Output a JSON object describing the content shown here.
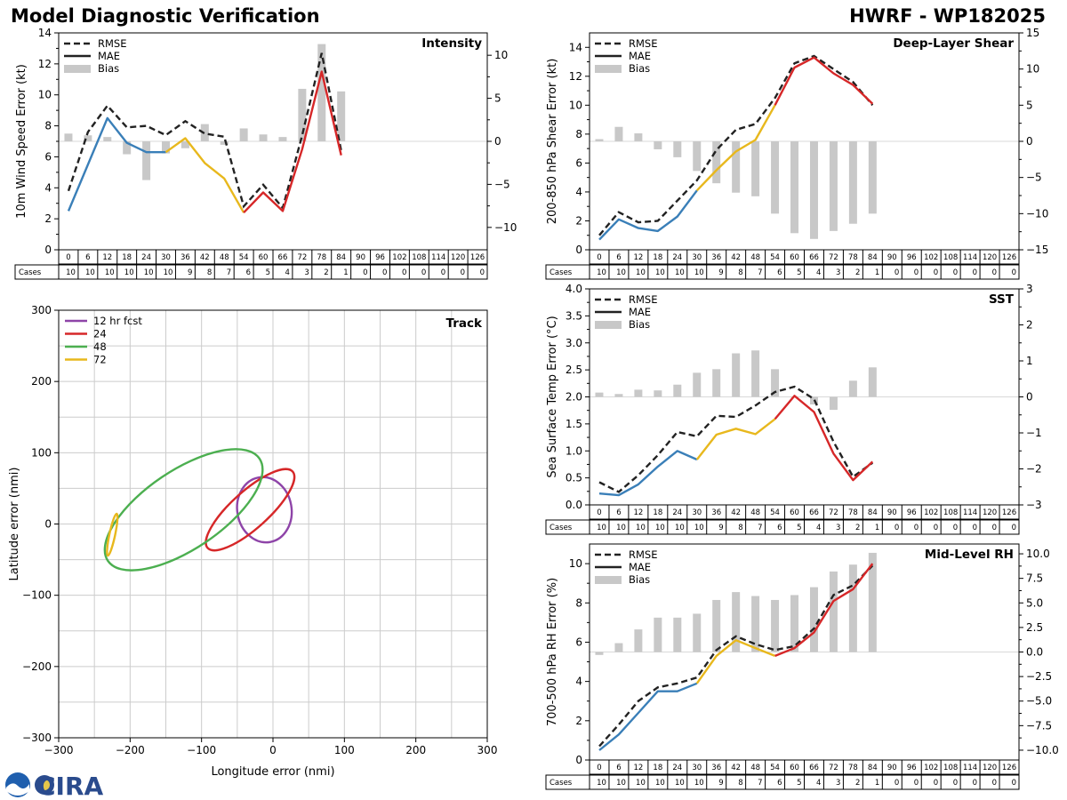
{
  "header": {
    "title_left": "Model Diagnostic Verification",
    "title_right": "HWRF - WP182025"
  },
  "logo": {
    "text": "CIRA"
  },
  "legend_labels": {
    "rmse": "RMSE",
    "mae": "MAE",
    "bias": "Bias"
  },
  "colors": {
    "early": "#3a7fb8",
    "mid": "#e8b81d",
    "late": "#d62728",
    "rmse": "#222222",
    "bias": "#c8c8c8",
    "fc12": "#8e44a8",
    "fc24": "#d62728",
    "fc48": "#4caf50",
    "fc72": "#e8b81d",
    "grid": "#cccccc"
  },
  "lead_hours": [
    0,
    6,
    12,
    18,
    24,
    30,
    36,
    42,
    48,
    54,
    60,
    66,
    72,
    78,
    84,
    90,
    96,
    102,
    108,
    114,
    120,
    126
  ],
  "chart_data": [
    {
      "id": "intensity",
      "type": "line",
      "panel_title": "Intensity",
      "ylabel": "10m Wind Speed Error (kt)",
      "ylim": [
        0,
        14
      ],
      "yticks": [
        0,
        2,
        4,
        6,
        8,
        10,
        12,
        14
      ],
      "y2lim": [
        -12.6,
        12.6
      ],
      "y2ticks": [
        -10,
        -5,
        0,
        5,
        10
      ],
      "y2ticklabels": [
        "−10",
        "−5",
        "0",
        "5",
        "10"
      ],
      "x": [
        0,
        6,
        12,
        18,
        24,
        30,
        36,
        42,
        48,
        54,
        60,
        66,
        72,
        78,
        84
      ],
      "rmse": [
        3.8,
        7.6,
        9.3,
        7.9,
        8.0,
        7.4,
        8.3,
        7.5,
        7.3,
        2.8,
        4.2,
        2.7,
        7.4,
        12.7,
        6.4
      ],
      "mae": [
        2.5,
        5.5,
        8.5,
        6.9,
        6.3,
        6.3,
        7.2,
        5.6,
        4.6,
        2.4,
        3.7,
        2.5,
        6.5,
        11.5,
        6.1
      ],
      "bias": [
        0.9,
        0.7,
        0.5,
        -1.5,
        -4.5,
        -1.4,
        -0.8,
        2.0,
        -0.4,
        1.5,
        0.8,
        0.5,
        6.1,
        11.3,
        5.8
      ],
      "cases": [
        10,
        10,
        10,
        10,
        10,
        10,
        9,
        8,
        7,
        6,
        5,
        4,
        3,
        2,
        1,
        0,
        0,
        0,
        0,
        0,
        0,
        0
      ]
    },
    {
      "id": "shear",
      "type": "line",
      "panel_title": "Deep-Layer Shear",
      "ylabel": "200-850 hPa Shear Error (kt)",
      "ylim": [
        0,
        15
      ],
      "yticks": [
        0,
        2,
        4,
        6,
        8,
        10,
        12,
        14
      ],
      "y2lim": [
        -15,
        15
      ],
      "y2ticks": [
        -15,
        -10,
        -5,
        0,
        5,
        10,
        15
      ],
      "y2ticklabels": [
        "−15",
        "−10",
        "−5",
        "0",
        "5",
        "10",
        "15"
      ],
      "x": [
        0,
        6,
        12,
        18,
        24,
        30,
        36,
        42,
        48,
        54,
        60,
        66,
        72,
        78,
        84
      ],
      "rmse": [
        1.0,
        2.6,
        1.9,
        2.0,
        3.4,
        4.8,
        6.9,
        8.3,
        8.7,
        10.5,
        12.9,
        13.4,
        12.5,
        11.6,
        10.0
      ],
      "mae": [
        0.7,
        2.1,
        1.5,
        1.3,
        2.3,
        4.1,
        5.5,
        6.8,
        7.6,
        10.0,
        12.6,
        13.3,
        12.2,
        11.4,
        10.1
      ],
      "bias": [
        0.3,
        2.0,
        1.1,
        -1.1,
        -2.2,
        -4.1,
        -5.8,
        -7.1,
        -7.6,
        -10.0,
        -12.7,
        -13.5,
        -12.4,
        -11.4,
        -10.0
      ],
      "cases": [
        10,
        10,
        10,
        10,
        10,
        10,
        9,
        8,
        7,
        6,
        5,
        4,
        3,
        2,
        1,
        0,
        0,
        0,
        0,
        0,
        0,
        0
      ]
    },
    {
      "id": "sst",
      "type": "line",
      "panel_title": "SST",
      "ylabel": "Sea Surface Temp Error (°C)",
      "ylim": [
        0,
        4
      ],
      "yticks": [
        0,
        0.5,
        1,
        1.5,
        2,
        2.5,
        3,
        3.5,
        4
      ],
      "yticklabels": [
        "0.0",
        "0.5",
        "1.0",
        "1.5",
        "2.0",
        "2.5",
        "3.0",
        "3.5",
        "4.0"
      ],
      "y2lim": [
        -3,
        3
      ],
      "y2ticks": [
        -3,
        -2,
        -1,
        0,
        1,
        2,
        3
      ],
      "y2ticklabels": [
        "−3",
        "−2",
        "−1",
        "0",
        "1",
        "2",
        "3"
      ],
      "x": [
        0,
        6,
        12,
        18,
        24,
        30,
        36,
        42,
        48,
        54,
        60,
        66,
        72,
        78,
        84
      ],
      "rmse": [
        0.42,
        0.24,
        0.55,
        0.92,
        1.35,
        1.27,
        1.65,
        1.63,
        1.84,
        2.09,
        2.19,
        1.96,
        1.17,
        0.52,
        0.78
      ],
      "mae": [
        0.21,
        0.18,
        0.38,
        0.71,
        1.0,
        0.84,
        1.3,
        1.41,
        1.31,
        1.59,
        2.02,
        1.72,
        0.95,
        0.46,
        0.8
      ],
      "bias": [
        0.12,
        0.08,
        0.2,
        0.18,
        0.34,
        0.67,
        0.77,
        1.21,
        1.29,
        0.77,
        0.0,
        -0.21,
        -0.36,
        0.45,
        0.82
      ],
      "cases": [
        10,
        10,
        10,
        10,
        10,
        10,
        9,
        8,
        7,
        6,
        5,
        4,
        3,
        2,
        1,
        0,
        0,
        0,
        0,
        0,
        0,
        0
      ]
    },
    {
      "id": "rh",
      "type": "line",
      "panel_title": "Mid-Level RH",
      "ylabel": "700-500 hPa RH Error (%)",
      "ylim": [
        0,
        11
      ],
      "yticks": [
        0,
        2,
        4,
        6,
        8,
        10
      ],
      "y2lim": [
        -11,
        11
      ],
      "y2ticks": [
        -10,
        -7.5,
        -5,
        -2.5,
        0,
        2.5,
        5,
        7.5,
        10
      ],
      "y2ticklabels": [
        "−10.0",
        "−7.5",
        "−5.0",
        "−2.5",
        "0.0",
        "2.5",
        "5.0",
        "7.5",
        "10.0"
      ],
      "x": [
        0,
        6,
        12,
        18,
        24,
        30,
        36,
        42,
        48,
        54,
        60,
        66,
        72,
        78,
        84
      ],
      "rmse": [
        0.7,
        1.8,
        3.0,
        3.7,
        3.9,
        4.2,
        5.6,
        6.3,
        5.9,
        5.6,
        5.8,
        6.7,
        8.4,
        8.9,
        9.9
      ],
      "mae": [
        0.5,
        1.3,
        2.4,
        3.5,
        3.5,
        3.9,
        5.3,
        6.1,
        5.7,
        5.3,
        5.7,
        6.5,
        8.1,
        8.7,
        10.0
      ],
      "bias": [
        -0.3,
        0.9,
        2.3,
        3.5,
        3.5,
        3.9,
        5.3,
        6.1,
        5.7,
        5.3,
        5.8,
        6.6,
        8.2,
        8.9,
        10.1
      ],
      "cases": [
        10,
        10,
        10,
        10,
        10,
        10,
        9,
        8,
        7,
        6,
        5,
        4,
        3,
        2,
        1,
        0,
        0,
        0,
        0,
        0,
        0,
        0
      ]
    },
    {
      "id": "track",
      "type": "scatter",
      "panel_title": "Track",
      "xlabel": "Longitude error (nmi)",
      "ylabel": "Latitude error (nmi)",
      "xlim": [
        -300,
        300
      ],
      "ylim": [
        -300,
        300
      ],
      "ticks": [
        -300,
        -200,
        -100,
        0,
        100,
        200,
        300
      ],
      "ticklabels": [
        "−300",
        "−200",
        "−100",
        "0",
        "100",
        "200",
        "300"
      ],
      "legend": [
        "12 hr fcst",
        "24",
        "48",
        "72"
      ],
      "ellipses": [
        {
          "cx": -12,
          "cy": 20,
          "rx": 38,
          "ry": 46,
          "angle": -10
        },
        {
          "cx": -32,
          "cy": 20,
          "rx": 80,
          "ry": 26,
          "angle": -42
        },
        {
          "cx": -125,
          "cy": 20,
          "rx": 128,
          "ry": 55,
          "angle": -34
        },
        {
          "cx": -225,
          "cy": -15,
          "rx": 30,
          "ry": 4,
          "angle": -78
        }
      ]
    }
  ]
}
